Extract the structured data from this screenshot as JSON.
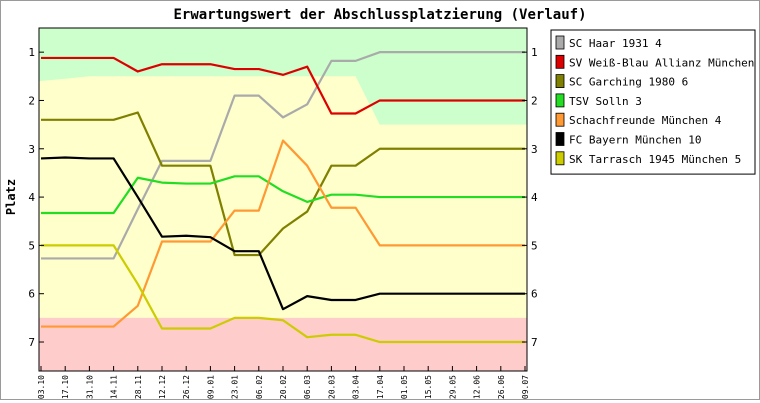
{
  "chart_data": {
    "type": "line",
    "title": "Erwartungswert der Abschlussplatzierung (Verlauf)",
    "ylabel": "Platz",
    "xlabel": "",
    "ylim": [
      0.5,
      7.6
    ],
    "y_inverted": true,
    "yticks": [
      1,
      2,
      3,
      4,
      5,
      6,
      7
    ],
    "x": [
      "03.10",
      "17.10",
      "31.10",
      "14.11",
      "28.11",
      "12.12",
      "26.12",
      "09.01",
      "23.01",
      "06.02",
      "20.02",
      "06.03",
      "20.03",
      "03.04",
      "17.04",
      "01.05",
      "15.05",
      "29.05",
      "12.06",
      "26.06",
      "09.07"
    ],
    "grid": false,
    "legend_position": "right",
    "zones": [
      {
        "name": "promotion",
        "color": "#ccffcc",
        "upper": [
          1.6,
          1.55,
          1.5,
          1.5,
          1.5,
          1.5,
          1.5,
          1.5,
          1.5,
          1.5,
          1.5,
          1.5,
          1.5,
          1.5,
          2.5,
          2.5,
          2.5,
          2.5,
          2.5,
          2.5,
          2.5
        ]
      },
      {
        "name": "middle",
        "color": "#ffffcc",
        "lower": 6.5
      },
      {
        "name": "relegation",
        "color": "#ffcccc",
        "lower": 7.6
      }
    ],
    "series": [
      {
        "name": "SC Haar 1931 4",
        "color": "#aaaaaa",
        "values": [
          5.27,
          5.27,
          5.27,
          5.27,
          4.25,
          3.25,
          3.25,
          3.25,
          1.9,
          1.9,
          2.35,
          2.08,
          1.18,
          1.18,
          1.0,
          1.0,
          1.0,
          1.0,
          1.0,
          1.0,
          1.0
        ]
      },
      {
        "name": "SV Weiß-Blau Allianz München 1",
        "color": "#dd0000",
        "values": [
          1.12,
          1.12,
          1.12,
          1.12,
          1.4,
          1.25,
          1.25,
          1.25,
          1.35,
          1.35,
          1.47,
          1.3,
          2.27,
          2.27,
          2.0,
          2.0,
          2.0,
          2.0,
          2.0,
          2.0,
          2.0
        ]
      },
      {
        "name": "SC Garching 1980 6",
        "color": "#808000",
        "values": [
          2.4,
          2.4,
          2.4,
          2.4,
          2.25,
          3.35,
          3.35,
          3.35,
          5.2,
          5.2,
          4.65,
          4.3,
          3.35,
          3.35,
          3.0,
          3.0,
          3.0,
          3.0,
          3.0,
          3.0,
          3.0
        ]
      },
      {
        "name": "TSV Solln 3",
        "color": "#22dd22",
        "values": [
          4.33,
          4.33,
          4.33,
          4.33,
          3.6,
          3.7,
          3.72,
          3.72,
          3.57,
          3.57,
          3.88,
          4.1,
          3.95,
          3.95,
          4.0,
          4.0,
          4.0,
          4.0,
          4.0,
          4.0,
          4.0
        ]
      },
      {
        "name": "Schachfreunde München 4",
        "color": "#ff9933",
        "values": [
          6.68,
          6.68,
          6.68,
          6.68,
          6.25,
          4.92,
          4.92,
          4.92,
          4.28,
          4.28,
          2.83,
          3.35,
          4.22,
          4.22,
          5.0,
          5.0,
          5.0,
          5.0,
          5.0,
          5.0,
          5.0
        ]
      },
      {
        "name": "FC Bayern München 10",
        "color": "#000000",
        "values": [
          3.2,
          3.18,
          3.2,
          3.2,
          4.0,
          4.82,
          4.8,
          4.83,
          5.12,
          5.12,
          6.32,
          6.05,
          6.13,
          6.13,
          6.0,
          6.0,
          6.0,
          6.0,
          6.0,
          6.0,
          6.0
        ]
      },
      {
        "name": "SK Tarrasch 1945 München 5",
        "color": "#cccc00",
        "values": [
          5.0,
          5.0,
          5.0,
          5.0,
          5.8,
          6.72,
          6.72,
          6.72,
          6.5,
          6.5,
          6.55,
          6.9,
          6.85,
          6.85,
          7.0,
          7.0,
          7.0,
          7.0,
          7.0,
          7.0,
          7.0
        ]
      }
    ]
  }
}
